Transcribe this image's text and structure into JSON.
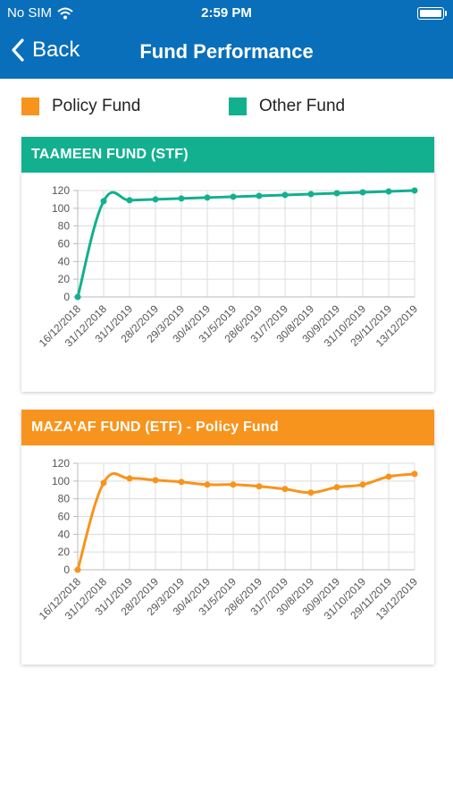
{
  "status_bar": {
    "carrier": "No SIM",
    "time": "2:59 PM",
    "wifi_icon": "wifi-icon",
    "battery_icon": "battery-icon"
  },
  "nav": {
    "back_label": "Back",
    "title": "Fund Performance"
  },
  "legend": [
    {
      "label": "Policy Fund",
      "color": "#f7941d"
    },
    {
      "label": "Other Fund",
      "color": "#12b08f"
    }
  ],
  "colors": {
    "header_blue": "#0a6fba",
    "teal": "#12b08f",
    "orange": "#f7941d"
  },
  "cards": [
    {
      "title": "TAAMEEN FUND (STF)",
      "color": "#12b08f"
    },
    {
      "title": "MAZA'AF FUND (ETF) - Policy Fund",
      "color": "#f7941d"
    }
  ],
  "chart_data": [
    {
      "type": "line",
      "title": "TAAMEEN FUND (STF)",
      "x": [
        "16/12/2018",
        "31/12/2018",
        "31/1/2019",
        "28/2/2019",
        "29/3/2019",
        "30/4/2019",
        "31/5/2019",
        "28/6/2019",
        "31/7/2019",
        "30/8/2019",
        "30/9/2019",
        "31/10/2019",
        "29/11/2019",
        "13/12/2019"
      ],
      "series": [
        {
          "values": [
            0,
            108,
            109,
            110,
            111,
            112,
            113,
            114,
            115,
            116,
            117,
            118,
            119,
            120
          ]
        }
      ],
      "yticks": [
        0,
        20,
        40,
        60,
        80,
        100,
        120
      ],
      "ylim": [
        0,
        120
      ],
      "grid": true,
      "color": "#12b08f"
    },
    {
      "type": "line",
      "title": "MAZA'AF FUND (ETF) - Policy Fund",
      "x": [
        "16/12/2018",
        "31/12/2018",
        "31/1/2019",
        "28/2/2019",
        "29/3/2019",
        "30/4/2019",
        "31/5/2019",
        "28/6/2019",
        "31/7/2019",
        "30/8/2019",
        "30/9/2019",
        "31/10/2019",
        "29/11/2019",
        "13/12/2019"
      ],
      "series": [
        {
          "values": [
            0,
            98,
            103,
            101,
            99,
            96,
            96,
            94,
            91,
            87,
            93,
            96,
            105,
            108
          ]
        }
      ],
      "yticks": [
        0,
        20,
        40,
        60,
        80,
        100,
        120
      ],
      "ylim": [
        0,
        120
      ],
      "grid": true,
      "color": "#f7941d"
    }
  ]
}
